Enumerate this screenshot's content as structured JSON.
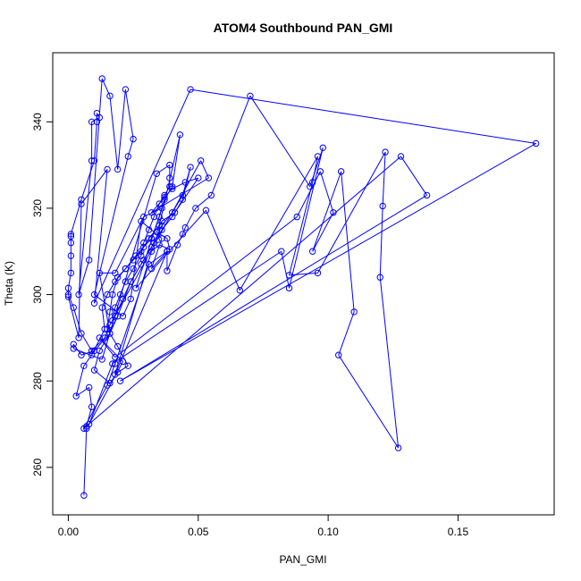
{
  "chart_data": {
    "type": "line",
    "title": "ATOM4 Southbound PAN_GMI",
    "xlabel": "PAN_GMI",
    "ylabel": "Theta (K)",
    "xlim": [
      -0.006,
      0.187
    ],
    "ylim": [
      249,
      356
    ],
    "x_ticks": [
      0.0,
      0.05,
      0.1,
      0.15
    ],
    "x_tick_labels": [
      "0.00",
      "0.05",
      "0.10",
      "0.15"
    ],
    "y_ticks": [
      260,
      280,
      300,
      320,
      340
    ],
    "y_tick_labels": [
      "260",
      "280",
      "300",
      "320",
      "340"
    ],
    "grid": false,
    "legend": "none",
    "series_color": "#0000ff",
    "markers": "open-circle",
    "points": [
      [
        0.006,
        253.5
      ],
      [
        0.007,
        269
      ],
      [
        0.007,
        269.5
      ],
      [
        0.009,
        274
      ],
      [
        0.008,
        278.5
      ],
      [
        0.003,
        276.5
      ],
      [
        0.006,
        283.5
      ],
      [
        0.009,
        286
      ],
      [
        0.014,
        292
      ],
      [
        0.013,
        297
      ],
      [
        0.015,
        300
      ],
      [
        0.018,
        303
      ],
      [
        0.022,
        306
      ],
      [
        0.026,
        309
      ],
      [
        0.029,
        311
      ],
      [
        0.032,
        313
      ],
      [
        0.035,
        318
      ],
      [
        0.037,
        322
      ],
      [
        0.04,
        325
      ],
      [
        0.043,
        337
      ],
      [
        0.035,
        316
      ],
      [
        0.031,
        313
      ],
      [
        0.028,
        310
      ],
      [
        0.025,
        308
      ],
      [
        0.022,
        306
      ],
      [
        0.019,
        304
      ],
      [
        0.017,
        300
      ],
      [
        0.016,
        296
      ],
      [
        0.015,
        292
      ],
      [
        0.019,
        288
      ],
      [
        0.023,
        283.5
      ],
      [
        0.019,
        282
      ],
      [
        0.016,
        279.5
      ],
      [
        0.01,
        282.5
      ],
      [
        0.012,
        287
      ],
      [
        0.016,
        291
      ],
      [
        0.019,
        295
      ],
      [
        0.024,
        303
      ],
      [
        0.029,
        308
      ],
      [
        0.033,
        312
      ],
      [
        0.036,
        315
      ],
      [
        0.04,
        318
      ],
      [
        0.044,
        322
      ],
      [
        0.047,
        329.5
      ],
      [
        0.044,
        323
      ],
      [
        0.04,
        319
      ],
      [
        0.036,
        316
      ],
      [
        0.032,
        311
      ],
      [
        0.028,
        307
      ],
      [
        0.024,
        303
      ],
      [
        0.021,
        299
      ],
      [
        0.018,
        295
      ],
      [
        0.016,
        293
      ],
      [
        0.014,
        290
      ],
      [
        0.009,
        287
      ],
      [
        0.005,
        291
      ],
      [
        0.002,
        297
      ],
      [
        0.0,
        300
      ],
      [
        0.0,
        301.5
      ],
      [
        0.001,
        305
      ],
      [
        0.001,
        309
      ],
      [
        0.001,
        312
      ],
      [
        0.001,
        313.5
      ],
      [
        0.001,
        314
      ],
      [
        0.005,
        322
      ],
      [
        0.01,
        331
      ],
      [
        0.011,
        340
      ],
      [
        0.011,
        342
      ],
      [
        0.012,
        341
      ],
      [
        0.009,
        340
      ],
      [
        0.009,
        331
      ],
      [
        0.004,
        300
      ],
      [
        0.008,
        308
      ],
      [
        0.013,
        350
      ],
      [
        0.016,
        346
      ],
      [
        0.019,
        329
      ],
      [
        0.022,
        347.5
      ],
      [
        0.025,
        336
      ],
      [
        0.023,
        332
      ],
      [
        0.01,
        300
      ],
      [
        0.021,
        295
      ],
      [
        0.024,
        299
      ],
      [
        0.028,
        317
      ],
      [
        0.036,
        313
      ],
      [
        0.032,
        306
      ],
      [
        0.038,
        310
      ],
      [
        0.038,
        305.5
      ],
      [
        0.042,
        311.5
      ],
      [
        0.044,
        314
      ],
      [
        0.045,
        315.5
      ],
      [
        0.049,
        320
      ],
      [
        0.055,
        323
      ],
      [
        0.07,
        346
      ],
      [
        0.093,
        325
      ],
      [
        0.098,
        334
      ],
      [
        0.085,
        301.5
      ],
      [
        0.082,
        310
      ],
      [
        0.017,
        284
      ],
      [
        0.008,
        270
      ],
      [
        0.021,
        284.5
      ],
      [
        0.012,
        290
      ],
      [
        0.018,
        285.5
      ],
      [
        0.088,
        318
      ],
      [
        0.097,
        328.5
      ],
      [
        0.102,
        319
      ],
      [
        0.094,
        310
      ],
      [
        0.105,
        328.5
      ],
      [
        0.11,
        296
      ],
      [
        0.104,
        286
      ],
      [
        0.127,
        264.5
      ],
      [
        0.12,
        304
      ],
      [
        0.121,
        320.5
      ],
      [
        0.122,
        333
      ],
      [
        0.096,
        305
      ],
      [
        0.085,
        304.5
      ],
      [
        0.094,
        326
      ],
      [
        0.096,
        332
      ],
      [
        0.066,
        301
      ],
      [
        0.053,
        319.5
      ],
      [
        0.026,
        301.5
      ],
      [
        0.036,
        320
      ],
      [
        0.029,
        318
      ],
      [
        0.018,
        305
      ],
      [
        0.012,
        305
      ],
      [
        0.016,
        291
      ],
      [
        0.01,
        287
      ],
      [
        0.005,
        286
      ],
      [
        0.002,
        288.5
      ],
      [
        0.002,
        287.5
      ],
      [
        0.013,
        285
      ],
      [
        0.034,
        328
      ],
      [
        0.039,
        330
      ],
      [
        0.039,
        327
      ],
      [
        0.039,
        325
      ],
      [
        0.037,
        323
      ],
      [
        0.035,
        321
      ],
      [
        0.033,
        318
      ],
      [
        0.031,
        315
      ],
      [
        0.029,
        312
      ],
      [
        0.028,
        309
      ],
      [
        0.025,
        306
      ],
      [
        0.022,
        303
      ],
      [
        0.02,
        300
      ],
      [
        0.018,
        297
      ],
      [
        0.017,
        294
      ],
      [
        0.051,
        331
      ],
      [
        0.054,
        327
      ],
      [
        0.032,
        319
      ],
      [
        0.037,
        322.5
      ],
      [
        0.04,
        324.5
      ],
      [
        0.045,
        326
      ],
      [
        0.05,
        327
      ],
      [
        0.041,
        319
      ],
      [
        0.036,
        317
      ],
      [
        0.034,
        314.5
      ],
      [
        0.038,
        313
      ],
      [
        0.039,
        310.5
      ],
      [
        0.035,
        311.5
      ],
      [
        0.032,
        310
      ],
      [
        0.018,
        281.5
      ],
      [
        0.038,
        310
      ],
      [
        0.031,
        307
      ],
      [
        0.018,
        284
      ],
      [
        0.015,
        279
      ],
      [
        0.006,
        269
      ],
      [
        0.128,
        332
      ],
      [
        0.138,
        323
      ],
      [
        0.02,
        280
      ],
      [
        0.18,
        335
      ],
      [
        0.047,
        347.5
      ],
      [
        0.01,
        298
      ],
      [
        0.015,
        329
      ],
      [
        0.005,
        321
      ],
      [
        0.004,
        290
      ],
      [
        0.0,
        299.5
      ]
    ]
  }
}
